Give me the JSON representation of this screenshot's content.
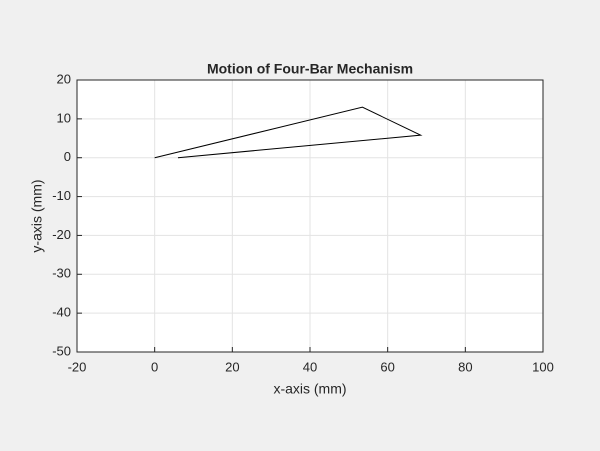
{
  "chart_data": {
    "type": "line",
    "title": "Motion of Four-Bar Mechanism",
    "x_label": "x-axis (mm)",
    "y_label": "y-axis (mm)",
    "x": [
      0,
      53.5,
      68.5,
      6
    ],
    "series": [
      {
        "color": "#000000",
        "values": [
          0,
          13,
          5.8,
          0
        ]
      }
    ],
    "xlim": [
      -20,
      100
    ],
    "xticks": [
      -20,
      0,
      20,
      40,
      60,
      80,
      100
    ],
    "ylim": [
      -50,
      20
    ],
    "yticks": [
      -50,
      -40,
      -30,
      -20,
      -10,
      0,
      10,
      20
    ],
    "grid": true
  }
}
